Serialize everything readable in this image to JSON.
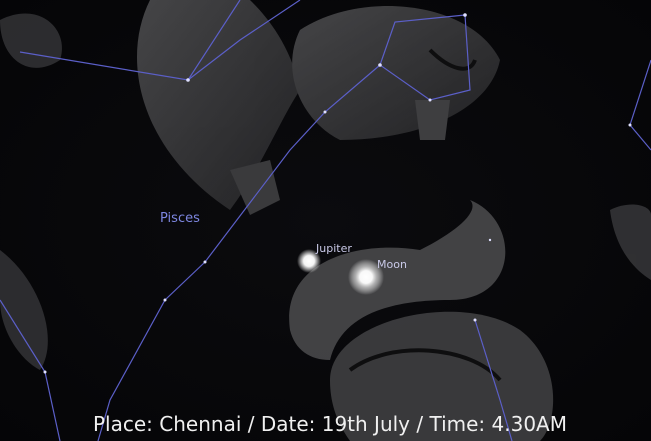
{
  "sky": {
    "constellation": "Pisces",
    "objects": [
      "Jupiter",
      "Moon"
    ]
  },
  "caption": "Place: Chennai / Date: 19th July / Time: 4.30AM"
}
